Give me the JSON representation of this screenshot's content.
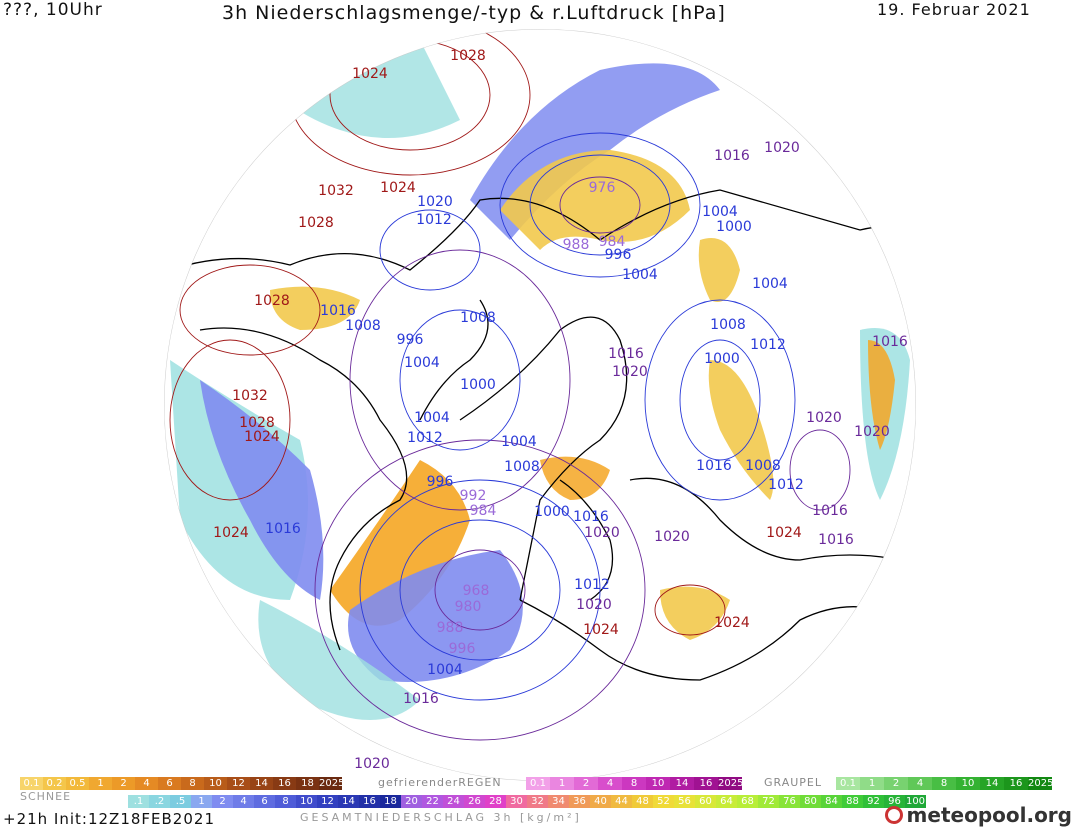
{
  "header": {
    "left": "???, 10Uhr",
    "title": "3h Niederschlagsmenge/-typ & r.Luftdruck [hPa]",
    "date": "19. Februar 2021"
  },
  "colors": {
    "high_pressure": "#a01818",
    "mid_pressure": "#6a2a9a",
    "low_pressure": "#2a3ad8",
    "rain_orange": "#f5a623",
    "rain_yellow": "#f2c94c",
    "snow_blue": "#7f8cf0",
    "snow_cyan": "#9ee0e0",
    "coast": "#000000"
  },
  "pressure_labels": [
    {
      "text": "1024",
      "tone": "high"
    },
    {
      "text": "1028",
      "tone": "high"
    },
    {
      "text": "1032",
      "tone": "high"
    },
    {
      "text": "1024",
      "tone": "high"
    },
    {
      "text": "1028",
      "tone": "high"
    },
    {
      "text": "1020",
      "tone": "low"
    },
    {
      "text": "1012",
      "tone": "low"
    },
    {
      "text": "976",
      "tone": "purple"
    },
    {
      "text": "988",
      "tone": "purple"
    },
    {
      "text": "984",
      "tone": "purple"
    },
    {
      "text": "996",
      "tone": "low"
    },
    {
      "text": "1004",
      "tone": "low"
    },
    {
      "text": "1016",
      "tone": "mid"
    },
    {
      "text": "1020",
      "tone": "mid"
    },
    {
      "text": "1004",
      "tone": "low"
    },
    {
      "text": "1000",
      "tone": "low"
    },
    {
      "text": "1028",
      "tone": "high"
    },
    {
      "text": "1016",
      "tone": "low"
    },
    {
      "text": "1008",
      "tone": "low"
    },
    {
      "text": "996",
      "tone": "low"
    },
    {
      "text": "1008",
      "tone": "low"
    },
    {
      "text": "1004",
      "tone": "low"
    },
    {
      "text": "1000",
      "tone": "low"
    },
    {
      "text": "1008",
      "tone": "low"
    },
    {
      "text": "1012",
      "tone": "low"
    },
    {
      "text": "1016",
      "tone": "mid"
    },
    {
      "text": "1020",
      "tone": "mid"
    },
    {
      "text": "1004",
      "tone": "low"
    },
    {
      "text": "1000",
      "tone": "low"
    },
    {
      "text": "1016",
      "tone": "mid"
    },
    {
      "text": "1032",
      "tone": "high"
    },
    {
      "text": "1028",
      "tone": "high"
    },
    {
      "text": "1024",
      "tone": "high"
    },
    {
      "text": "1004",
      "tone": "low"
    },
    {
      "text": "1012",
      "tone": "low"
    },
    {
      "text": "1004",
      "tone": "low"
    },
    {
      "text": "1008",
      "tone": "low"
    },
    {
      "text": "1020",
      "tone": "mid"
    },
    {
      "text": "1020",
      "tone": "mid"
    },
    {
      "text": "1016",
      "tone": "low"
    },
    {
      "text": "1008",
      "tone": "low"
    },
    {
      "text": "1012",
      "tone": "low"
    },
    {
      "text": "996",
      "tone": "low"
    },
    {
      "text": "992",
      "tone": "purple"
    },
    {
      "text": "984",
      "tone": "purple"
    },
    {
      "text": "1020",
      "tone": "mid"
    },
    {
      "text": "1024",
      "tone": "high"
    },
    {
      "text": "1000",
      "tone": "low"
    },
    {
      "text": "1016",
      "tone": "low"
    },
    {
      "text": "1020",
      "tone": "mid"
    },
    {
      "text": "1024",
      "tone": "high"
    },
    {
      "text": "1016",
      "tone": "low"
    },
    {
      "text": "1016",
      "tone": "mid"
    },
    {
      "text": "968",
      "tone": "purple"
    },
    {
      "text": "980",
      "tone": "purple"
    },
    {
      "text": "988",
      "tone": "purple"
    },
    {
      "text": "996",
      "tone": "purple"
    },
    {
      "text": "1012",
      "tone": "low"
    },
    {
      "text": "1020",
      "tone": "mid"
    },
    {
      "text": "1024",
      "tone": "high"
    },
    {
      "text": "1024",
      "tone": "high"
    },
    {
      "text": "1004",
      "tone": "low"
    },
    {
      "text": "1016",
      "tone": "mid"
    },
    {
      "text": "1020",
      "tone": "mid"
    },
    {
      "text": "1016",
      "tone": "mid"
    }
  ],
  "legend": {
    "snow_label": "SCHNEE",
    "snow_values": [
      "0.1",
      "0.2",
      "0.5",
      "1",
      "2",
      "4",
      "6",
      "8",
      "10",
      "12",
      "14",
      "16",
      "18",
      "2025+"
    ],
    "freezing_label": "gefrierenderREGEN",
    "freezing_values": [
      "0.1",
      "1",
      "2",
      "4",
      "8",
      "10",
      "14",
      "16",
      "2025+"
    ],
    "graupel_label": "GRAUPEL",
    "graupel_values": [
      "0.1",
      "1",
      "2",
      "4",
      "8",
      "10",
      "14",
      "16",
      "2025+"
    ],
    "total_values": [
      ".1",
      ".2",
      ".5",
      "1",
      "2",
      "4",
      "6",
      "8",
      "10",
      "12",
      "14",
      "16",
      "18",
      "20",
      "22",
      "24",
      "26",
      "28",
      "30",
      "32",
      "34",
      "36",
      "40",
      "44",
      "48",
      "52",
      "56",
      "60",
      "64",
      "68",
      "72",
      "76",
      "80",
      "84",
      "88",
      "92",
      "96",
      "100"
    ],
    "total_label": "GESAMTNIEDERSCHLAG 3h [kg/m²]"
  },
  "footer": {
    "run": "+21h  Init:12Z18FEB2021",
    "brand": "meteopool.org"
  }
}
